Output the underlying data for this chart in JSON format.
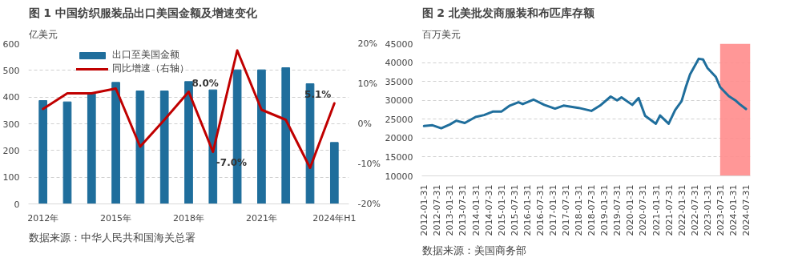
{
  "chart_data": [
    {
      "type": "bar",
      "title": "图 1  中国纺织服装品出口美国金额及增速变化",
      "ylabel": "亿美元",
      "categories": [
        "2012年",
        null,
        null,
        "2015年",
        null,
        null,
        "2018年",
        null,
        null,
        "2021年",
        null,
        null,
        "2024年H1"
      ],
      "series": [
        {
          "name": "出口至美国金额",
          "type": "bar",
          "color": "#1f6e9c",
          "values": [
            387,
            382,
            412,
            455,
            423,
            423,
            458,
            427,
            502,
            502,
            510,
            450,
            230
          ]
        },
        {
          "name": "同比增速（右轴）",
          "type": "line",
          "axis": "y2",
          "color": "#c00000",
          "values": [
            3.7,
            7.6,
            7.6,
            8.8,
            -5.7,
            1,
            8.0,
            -7.0,
            18.3,
            3.5,
            1,
            -11,
            5.1
          ],
          "value_labels": [
            null,
            null,
            null,
            null,
            null,
            null,
            "8.0%",
            "-7.0%",
            null,
            null,
            null,
            null,
            "5.1%"
          ]
        }
      ],
      "ylim": [
        0,
        600
      ],
      "yticks": [
        0,
        100,
        200,
        300,
        400,
        500,
        600
      ],
      "y2lim": [
        -20,
        20
      ],
      "y2ticks": [
        {
          "value": -20,
          "label": "-20%"
        },
        {
          "value": -10,
          "label": "-10%"
        },
        {
          "value": 0,
          "label": "0%"
        },
        {
          "value": 10,
          "label": "10%"
        },
        {
          "value": 20,
          "label": "20%"
        }
      ],
      "grid": "y",
      "legend": "top",
      "annotations": [
        "数据来源：中华人民共和国海关总署"
      ]
    },
    {
      "type": "line",
      "title": "图 2  北美批发商服装和布匹库存额",
      "ylabel": "百万美元",
      "x": [
        "2012-01",
        "2012-05",
        "2012-09",
        "2013-01",
        "2013-04",
        "2013-08",
        "2014-01",
        "2014-05",
        "2014-09",
        "2015-01",
        "2015-05",
        "2015-09",
        "2015-11",
        "2016-04",
        "2016-09",
        "2017-02",
        "2017-06",
        "2018-01",
        "2018-07",
        "2018-11",
        "2019-04",
        "2019-07",
        "2019-09",
        "2020-02",
        "2020-05",
        "2020-08",
        "2021-01",
        "2021-03",
        "2021-07",
        "2021-10",
        "2022-01",
        "2022-03",
        "2022-05",
        "2022-09",
        "2022-11",
        "2023-01",
        "2023-05",
        "2023-07",
        "2023-11",
        "2024-02",
        "2024-04",
        "2024-07"
      ],
      "series": [
        {
          "color": "#1f6e9c",
          "values": [
            23200,
            23400,
            22600,
            23600,
            24600,
            24000,
            25600,
            26100,
            27000,
            27000,
            28600,
            29500,
            29000,
            30200,
            28800,
            27800,
            28600,
            28000,
            27200,
            28600,
            31000,
            30000,
            30800,
            28800,
            30600,
            25900,
            23800,
            26000,
            23800,
            27400,
            29800,
            33500,
            36900,
            41000,
            40800,
            38600,
            36200,
            33500,
            31100,
            30000,
            29000,
            27700
          ]
        }
      ],
      "xlim": [
        "2011-12",
        "2024-09"
      ],
      "xticks": [
        {
          "value": "2012-01",
          "label": "2012-01-31"
        },
        {
          "value": "2012-07",
          "label": "2012-07-31"
        },
        {
          "value": "2013-01",
          "label": "2013-01-31"
        },
        {
          "value": "2013-07",
          "label": "2013-07-31"
        },
        {
          "value": "2014-01",
          "label": "2014-01-31"
        },
        {
          "value": "2014-07",
          "label": "2014-07-31"
        },
        {
          "value": "2015-01",
          "label": "2015-01-31"
        },
        {
          "value": "2015-07",
          "label": "2015-07-31"
        },
        {
          "value": "2016-01",
          "label": "2016-01-31"
        },
        {
          "value": "2016-07",
          "label": "2016-07-31"
        },
        {
          "value": "2017-01",
          "label": "2017-01-31"
        },
        {
          "value": "2017-07",
          "label": "2017-07-31"
        },
        {
          "value": "2018-01",
          "label": "2018-01-31"
        },
        {
          "value": "2018-07",
          "label": "2018-07-31"
        },
        {
          "value": "2019-01",
          "label": "2019-01-31"
        },
        {
          "value": "2019-07",
          "label": "2019-07-31"
        },
        {
          "value": "2020-01",
          "label": "2020-01-31"
        },
        {
          "value": "2020-07",
          "label": "2020-07-31"
        },
        {
          "value": "2021-01",
          "label": "2021-01-31"
        },
        {
          "value": "2021-07",
          "label": "2021-07-31"
        },
        {
          "value": "2022-01",
          "label": "2022-01-31"
        },
        {
          "value": "2022-07",
          "label": "2022-07-31"
        },
        {
          "value": "2023-01",
          "label": "2023-01-31"
        },
        {
          "value": "2023-07",
          "label": "2023-07-31"
        },
        {
          "value": "2024-01",
          "label": "2024-01-31"
        },
        {
          "value": "2024-07",
          "label": "2024-07-31"
        }
      ],
      "ylim": [
        10000,
        45000
      ],
      "yticks": [
        10000,
        15000,
        20000,
        25000,
        30000,
        35000,
        40000,
        45000
      ],
      "grid": "y",
      "bands": [
        {
          "axis": "x",
          "from": "2023-07",
          "to": "2024-09",
          "color": "#ff8c8c"
        }
      ],
      "annotations": [
        "数据来源：美国商务部"
      ]
    }
  ]
}
